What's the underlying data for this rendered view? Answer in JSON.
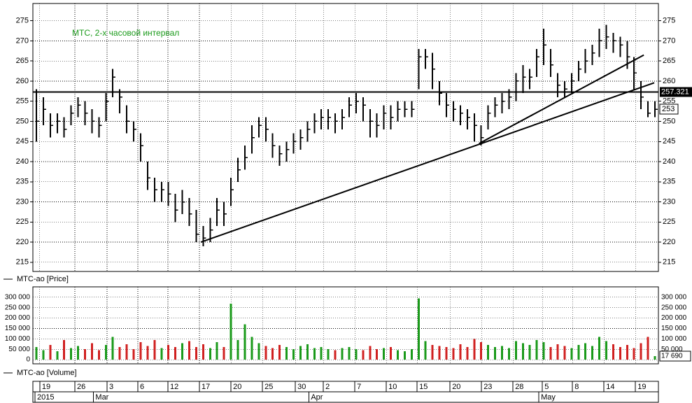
{
  "chart_data": [
    {
      "type": "ohlc",
      "title": "МТС, 2-х часовой интервал",
      "legend": "MTC-ao [Price]",
      "color": "#000000",
      "title_color": "#1a9a1a",
      "close": [
        250,
        253,
        249,
        250,
        248,
        252,
        254,
        252,
        250,
        249,
        255,
        261,
        256,
        250,
        248,
        244,
        236,
        233,
        233,
        232,
        228,
        230,
        227,
        222,
        221,
        223,
        228,
        227,
        233,
        238,
        241,
        246,
        249,
        248,
        244,
        242,
        243,
        245,
        246,
        248,
        250,
        251,
        251,
        250,
        251,
        254,
        255,
        254,
        250,
        249,
        252,
        251,
        253,
        253,
        253,
        266,
        266,
        263,
        257,
        254,
        253,
        252,
        251,
        249,
        246,
        252,
        254,
        255,
        256,
        260,
        261,
        261,
        266,
        269,
        264,
        259,
        258,
        260,
        263,
        265,
        267,
        270,
        271,
        270,
        269,
        266,
        262,
        256,
        252,
        253
      ],
      "high": [
        258,
        256,
        252,
        252,
        251,
        254,
        256,
        255,
        253,
        251,
        257,
        263,
        258,
        254,
        250,
        247,
        240,
        236,
        235,
        235,
        232,
        233,
        231,
        228,
        224,
        226,
        231,
        230,
        236,
        241,
        244,
        249,
        251,
        251,
        247,
        244,
        245,
        247,
        248,
        250,
        252,
        253,
        253,
        252,
        253,
        256,
        257,
        256,
        253,
        252,
        254,
        254,
        255,
        255,
        255,
        268,
        268,
        267,
        260,
        257,
        255,
        254,
        253,
        252,
        249,
        254,
        256,
        257,
        258,
        262,
        264,
        263,
        268,
        273,
        268,
        262,
        260,
        262,
        265,
        268,
        269,
        273,
        274,
        272,
        271,
        270,
        266,
        260,
        255,
        255
      ],
      "low": [
        245,
        249,
        246,
        247,
        246,
        249,
        251,
        249,
        247,
        246,
        250,
        256,
        252,
        247,
        245,
        240,
        233,
        230,
        230,
        229,
        225,
        227,
        224,
        220,
        219,
        220,
        224,
        224,
        229,
        235,
        238,
        242,
        246,
        245,
        241,
        239,
        240,
        242,
        243,
        245,
        247,
        248,
        248,
        247,
        248,
        251,
        252,
        250,
        246,
        246,
        248,
        248,
        250,
        251,
        251,
        258,
        263,
        258,
        254,
        251,
        250,
        249,
        248,
        245,
        244,
        248,
        251,
        252,
        253,
        255,
        257,
        258,
        261,
        264,
        261,
        256,
        256,
        257,
        260,
        262,
        264,
        266,
        268,
        267,
        266,
        263,
        258,
        253,
        251,
        251
      ],
      "xlim": [
        -0.5,
        89.5
      ],
      "ylim": [
        212.7,
        279.3
      ],
      "yticks": [
        215,
        220,
        225,
        230,
        235,
        240,
        245,
        250,
        255,
        260,
        265,
        270,
        275
      ],
      "level": 257.321,
      "last_price": 253,
      "trend_lines": [
        {
          "x": [
            23.67,
            88.9
          ],
          "y": [
            220,
            259.6
          ]
        },
        {
          "x": [
            63.7,
            87.4
          ],
          "y": [
            244.5,
            266.5
          ]
        }
      ],
      "xticks": [
        {
          "value": 0.5,
          "label": "19"
        },
        {
          "value": 5.54,
          "label": "26"
        },
        {
          "value": 10.17,
          "label": "3"
        },
        {
          "value": 14.6,
          "label": "6"
        },
        {
          "value": 18.93,
          "label": "12"
        },
        {
          "value": 23.46,
          "label": "17"
        },
        {
          "value": 28.0,
          "label": "20"
        },
        {
          "value": 32.53,
          "label": "25"
        },
        {
          "value": 37.26,
          "label": "30"
        },
        {
          "value": 41.29,
          "label": "2"
        },
        {
          "value": 45.82,
          "label": "7"
        },
        {
          "value": 50.35,
          "label": "10"
        },
        {
          "value": 54.78,
          "label": "15"
        },
        {
          "value": 59.52,
          "label": "20"
        },
        {
          "value": 64.05,
          "label": "23"
        },
        {
          "value": 68.58,
          "label": "28"
        },
        {
          "value": 72.81,
          "label": "5"
        },
        {
          "value": 77.14,
          "label": "8"
        },
        {
          "value": 81.67,
          "label": "14"
        },
        {
          "value": 86.2,
          "label": "19"
        }
      ],
      "month_ticks": [
        {
          "value": -0.2,
          "label": "2015"
        },
        {
          "value": 8.2,
          "label": "Mar"
        },
        {
          "value": 39.2,
          "label": "Apr"
        },
        {
          "value": 72.3,
          "label": "May"
        }
      ],
      "grid": true
    },
    {
      "type": "volume",
      "legend": "MTC-ao [Volume]",
      "up_color": "#1a9a1a",
      "down_color": "#d02020",
      "values": [
        60000,
        45000,
        70000,
        40000,
        95000,
        55000,
        65000,
        50000,
        80000,
        45000,
        70000,
        110000,
        60000,
        75000,
        50000,
        85000,
        65000,
        95000,
        55000,
        70000,
        60000,
        80000,
        90000,
        60000,
        75000,
        55000,
        85000,
        60000,
        270000,
        95000,
        170000,
        110000,
        80000,
        65000,
        55000,
        70000,
        60000,
        50000,
        65000,
        75000,
        55000,
        60000,
        50000,
        45000,
        55000,
        60000,
        50000,
        45000,
        65000,
        50000,
        55000,
        60000,
        45000,
        40000,
        50000,
        295000,
        90000,
        70000,
        65000,
        60000,
        55000,
        75000,
        60000,
        100000,
        85000,
        70000,
        60000,
        65000,
        55000,
        90000,
        80000,
        70000,
        95000,
        85000,
        60000,
        75000,
        65000,
        55000,
        70000,
        80000,
        65000,
        110000,
        90000,
        75000,
        60000,
        70000,
        55000,
        80000,
        110000,
        17690
      ],
      "last_label": "17 690",
      "ylim": [
        -20000,
        350000
      ],
      "yticks": [
        0,
        {
          "value": 50000,
          "label": "50 000"
        },
        {
          "value": 100000,
          "label": "100 000"
        },
        {
          "value": 150000,
          "label": "150 000"
        },
        {
          "value": 200000,
          "label": "200 000"
        },
        {
          "value": 250000,
          "label": "250 000"
        },
        {
          "value": 300000,
          "label": "300 000"
        }
      ]
    }
  ]
}
